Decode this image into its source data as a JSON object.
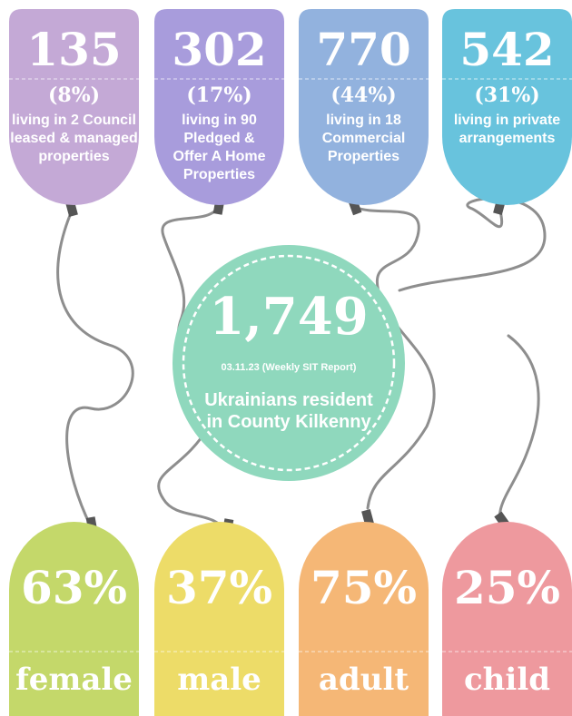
{
  "top_tags": [
    {
      "number": "135",
      "percent": "(8%)",
      "lines": [
        "living in 2 Council",
        "leased & managed",
        "properties"
      ],
      "color": "#c4a9d6"
    },
    {
      "number": "302",
      "percent": "(17%)",
      "lines": [
        "living in 90",
        "Pledged &",
        "Offer A Home",
        "Properties"
      ],
      "color": "#a89cdc"
    },
    {
      "number": "770",
      "percent": "(44%)",
      "lines": [
        "living in 18",
        "Commercial",
        "Properties"
      ],
      "color": "#92b2de"
    },
    {
      "number": "542",
      "percent": "(31%)",
      "lines": [
        "living in private",
        "arrangements"
      ],
      "color": "#68c3dd"
    }
  ],
  "center": {
    "number": "1,749",
    "date": "03.11.23 (Weekly SIT Report)",
    "lines": [
      "Ukrainians resident",
      "in County Kilkenny"
    ],
    "color": "#8fd8bd"
  },
  "bottom_tags": [
    {
      "percent": "63%",
      "label": "female",
      "color": "#c4d86a"
    },
    {
      "percent": "37%",
      "label": "male",
      "color": "#eddc68"
    },
    {
      "percent": "75%",
      "label": "adult",
      "color": "#f5b776"
    },
    {
      "percent": "25%",
      "label": "child",
      "color": "#ee999e"
    }
  ]
}
